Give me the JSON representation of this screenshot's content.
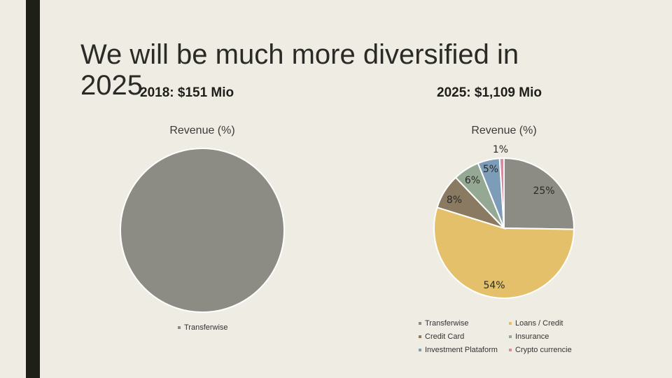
{
  "slide": {
    "title": "We will be much more diversified in 2025",
    "accent_bar_color": "#1e1f17",
    "background_color": "#efece4"
  },
  "chart_data": [
    {
      "type": "pie",
      "subtitle": "2018: $151 Mio",
      "title": "Revenue (%)",
      "categories": [
        "Transferwise"
      ],
      "values": [
        100
      ],
      "labels": [
        ""
      ],
      "colors": [
        "#8c8c84"
      ],
      "legend": [
        "Transferwise"
      ],
      "legend_position": "bottom"
    },
    {
      "type": "pie",
      "subtitle": "2025: $1,109 Mio",
      "title": "Revenue (%)",
      "categories": [
        "Transferwise",
        "Loans / Credit",
        "Credit Card",
        "Insurance",
        "Investment Plataform",
        "Crypto currencie"
      ],
      "values": [
        25,
        54,
        8,
        6,
        5,
        1
      ],
      "labels": [
        "25%",
        "54%",
        "8%",
        "6%",
        "5%",
        "1%"
      ],
      "colors": [
        "#8c8c84",
        "#e4c06a",
        "#8a7a62",
        "#94a894",
        "#7c9cb8",
        "#d88aa0"
      ],
      "legend": [
        "Transferwise",
        "Loans / Credit",
        "Credit Card",
        "Insurance",
        "Investment Plataform",
        "Crypto currencie"
      ],
      "legend_position": "bottom"
    }
  ]
}
